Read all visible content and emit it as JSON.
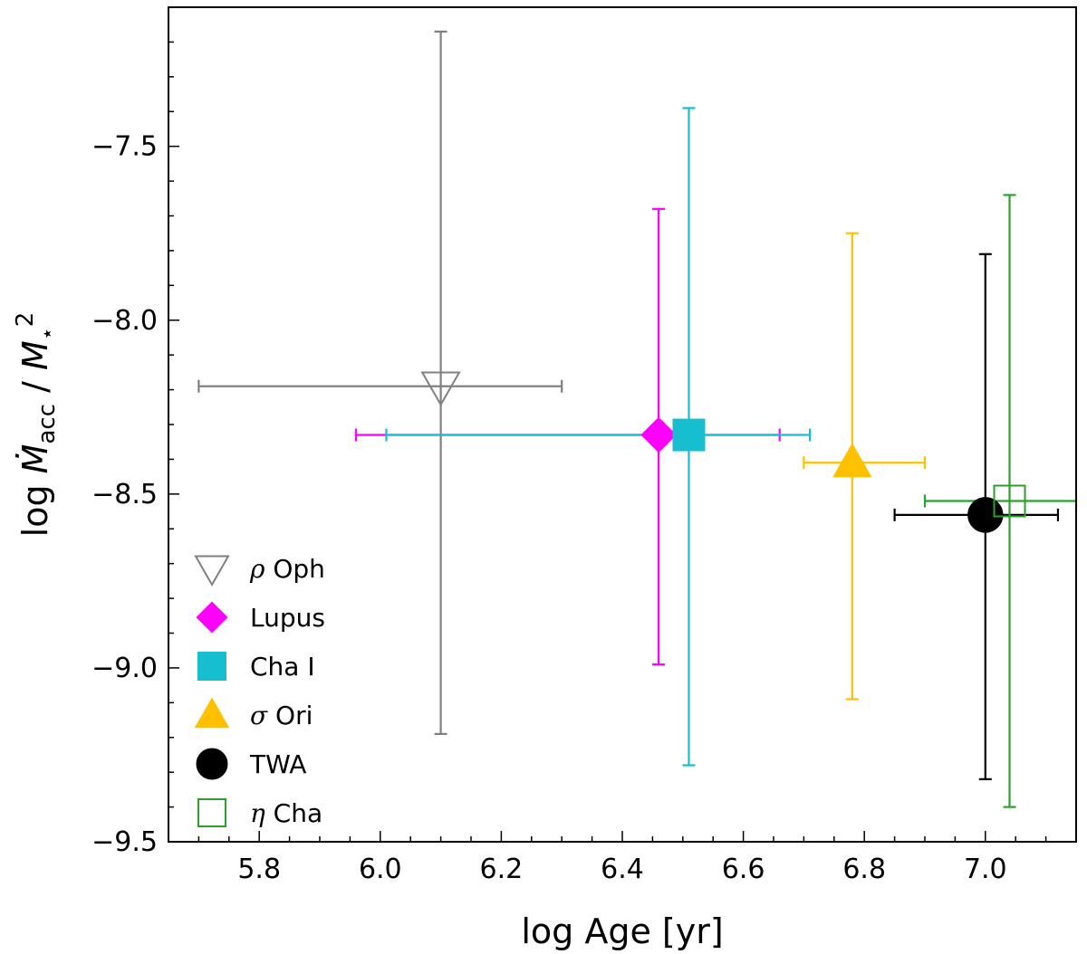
{
  "chart_data": {
    "type": "scatter",
    "xlabel": "log Age [yr]",
    "ylabel": "log Ṁacc / M⋆²",
    "ylabel_parts": {
      "prefix": "log ",
      "mdot": "Ṁ",
      "sub": "acc",
      "slash": " / ",
      "m": "M",
      "star": "⋆",
      "sup": "2"
    },
    "xlim": [
      5.65,
      7.15
    ],
    "ylim": [
      -9.5,
      -7.1
    ],
    "x_ticks": [
      5.8,
      6.0,
      6.2,
      6.4,
      6.6,
      6.8,
      7.0
    ],
    "x_tick_labels": [
      "5.8",
      "6.0",
      "6.2",
      "6.4",
      "6.6",
      "6.8",
      "7.0"
    ],
    "y_ticks": [
      -7.5,
      -8.0,
      -8.5,
      -9.0,
      -9.5
    ],
    "y_tick_labels": [
      "−7.5",
      "−8.0",
      "−8.5",
      "−9.0",
      "−9.5"
    ],
    "x_minor_step": 0.05,
    "y_minor_step": 0.1,
    "legend_position": "lower-left",
    "series": [
      {
        "name": "ρ Oph",
        "greek": "ρ",
        "rest": " Oph",
        "marker": "triangle-down",
        "filled": false,
        "color": "#808080",
        "x": 6.1,
        "y": -8.19,
        "xerr_low": 5.7,
        "xerr_high": 6.3,
        "yerr_low": -9.19,
        "yerr_high": -7.17
      },
      {
        "name": "Lupus",
        "greek": "",
        "rest": "Lupus",
        "marker": "diamond",
        "filled": true,
        "color": "#ff00ff",
        "x": 6.46,
        "y": -8.33,
        "xerr_low": 5.96,
        "xerr_high": 6.66,
        "yerr_low": -8.99,
        "yerr_high": -7.68
      },
      {
        "name": "Cha I",
        "greek": "",
        "rest": "Cha I",
        "marker": "square",
        "filled": true,
        "color": "#17becf",
        "x": 6.51,
        "y": -8.33,
        "xerr_low": 6.01,
        "xerr_high": 6.71,
        "yerr_low": -9.28,
        "yerr_high": -7.39
      },
      {
        "name": "σ Ori",
        "greek": "σ",
        "rest": " Ori",
        "marker": "triangle-up",
        "filled": true,
        "color": "#ffc000",
        "x": 6.78,
        "y": -8.41,
        "xerr_low": 6.7,
        "xerr_high": 6.9,
        "yerr_low": -9.09,
        "yerr_high": -7.75
      },
      {
        "name": "TWA",
        "greek": "",
        "rest": "TWA",
        "marker": "circle",
        "filled": true,
        "color": "#000000",
        "x": 7.0,
        "y": -8.56,
        "xerr_low": 6.85,
        "xerr_high": 7.12,
        "yerr_low": -9.32,
        "yerr_high": -7.81
      },
      {
        "name": "η Cha",
        "greek": "η",
        "rest": " Cha",
        "marker": "square",
        "filled": false,
        "color": "#2ca02c",
        "x": 7.04,
        "y": -8.52,
        "xerr_low": 6.9,
        "xerr_high": 7.15,
        "yerr_low": -9.4,
        "yerr_high": -7.64
      }
    ]
  }
}
